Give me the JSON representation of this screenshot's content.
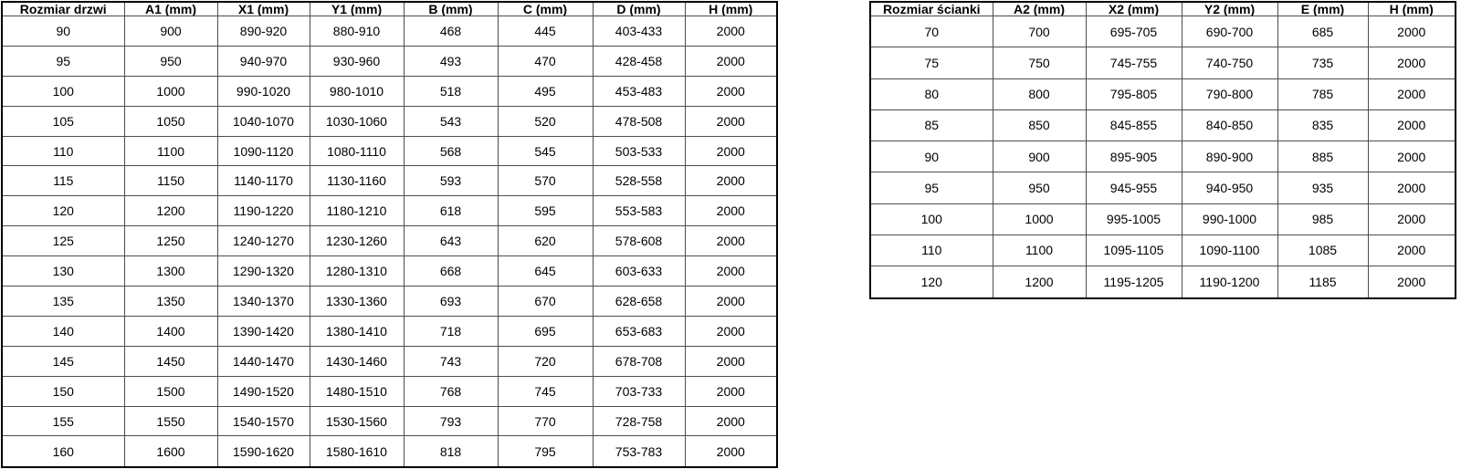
{
  "styles": {
    "background": "#ffffff",
    "outer_border": "#000000",
    "grid_line": "#4d4d4d",
    "text": "#000000"
  },
  "left_table": {
    "title": "Rozmiar drzwi",
    "headers": [
      "Rozmiar drzwi",
      "A1 (mm)",
      "X1 (mm)",
      "Y1 (mm)",
      "B (mm)",
      "C (mm)",
      "D (mm)",
      "H (mm)"
    ],
    "rows": [
      [
        "90",
        "900",
        "890-920",
        "880-910",
        "468",
        "445",
        "403-433",
        "2000"
      ],
      [
        "95",
        "950",
        "940-970",
        "930-960",
        "493",
        "470",
        "428-458",
        "2000"
      ],
      [
        "100",
        "1000",
        "990-1020",
        "980-1010",
        "518",
        "495",
        "453-483",
        "2000"
      ],
      [
        "105",
        "1050",
        "1040-1070",
        "1030-1060",
        "543",
        "520",
        "478-508",
        "2000"
      ],
      [
        "110",
        "1100",
        "1090-1120",
        "1080-1110",
        "568",
        "545",
        "503-533",
        "2000"
      ],
      [
        "115",
        "1150",
        "1140-1170",
        "1130-1160",
        "593",
        "570",
        "528-558",
        "2000"
      ],
      [
        "120",
        "1200",
        "1190-1220",
        "1180-1210",
        "618",
        "595",
        "553-583",
        "2000"
      ],
      [
        "125",
        "1250",
        "1240-1270",
        "1230-1260",
        "643",
        "620",
        "578-608",
        "2000"
      ],
      [
        "130",
        "1300",
        "1290-1320",
        "1280-1310",
        "668",
        "645",
        "603-633",
        "2000"
      ],
      [
        "135",
        "1350",
        "1340-1370",
        "1330-1360",
        "693",
        "670",
        "628-658",
        "2000"
      ],
      [
        "140",
        "1400",
        "1390-1420",
        "1380-1410",
        "718",
        "695",
        "653-683",
        "2000"
      ],
      [
        "145",
        "1450",
        "1440-1470",
        "1430-1460",
        "743",
        "720",
        "678-708",
        "2000"
      ],
      [
        "150",
        "1500",
        "1490-1520",
        "1480-1510",
        "768",
        "745",
        "703-733",
        "2000"
      ],
      [
        "155",
        "1550",
        "1540-1570",
        "1530-1560",
        "793",
        "770",
        "728-758",
        "2000"
      ],
      [
        "160",
        "1600",
        "1590-1620",
        "1580-1610",
        "818",
        "795",
        "753-783",
        "2000"
      ]
    ]
  },
  "right_table": {
    "title": "Rozmiar ścianki",
    "headers": [
      "Rozmiar ścianki",
      "A2 (mm)",
      "X2 (mm)",
      "Y2 (mm)",
      "E (mm)",
      "H (mm)"
    ],
    "rows": [
      [
        "70",
        "700",
        "695-705",
        "690-700",
        "685",
        "2000"
      ],
      [
        "75",
        "750",
        "745-755",
        "740-750",
        "735",
        "2000"
      ],
      [
        "80",
        "800",
        "795-805",
        "790-800",
        "785",
        "2000"
      ],
      [
        "85",
        "850",
        "845-855",
        "840-850",
        "835",
        "2000"
      ],
      [
        "90",
        "900",
        "895-905",
        "890-900",
        "885",
        "2000"
      ],
      [
        "95",
        "950",
        "945-955",
        "940-950",
        "935",
        "2000"
      ],
      [
        "100",
        "1000",
        "995-1005",
        "990-1000",
        "985",
        "2000"
      ],
      [
        "110",
        "1100",
        "1095-1105",
        "1090-1100",
        "1085",
        "2000"
      ],
      [
        "120",
        "1200",
        "1195-1205",
        "1190-1200",
        "1185",
        "2000"
      ]
    ]
  }
}
